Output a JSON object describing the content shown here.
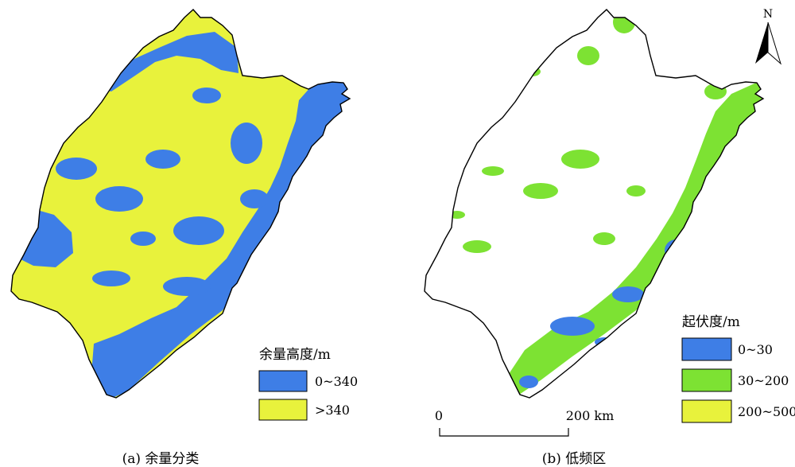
{
  "panels": [
    {
      "caption": "(a) 余量分类",
      "legend": {
        "title": "余量高度/m",
        "items": [
          {
            "label": "0~340",
            "color": "#3e7ee6"
          },
          {
            "label": ">340",
            "color": "#e8f23c"
          }
        ]
      }
    },
    {
      "caption": "(b) 低频区",
      "legend": {
        "title": "起伏度/m",
        "items": [
          {
            "label": "0~30",
            "color": "#3e7ee6"
          },
          {
            "label": "30~200",
            "color": "#7de233"
          },
          {
            "label": "200~500",
            "color": "#e8f23c"
          }
        ]
      }
    }
  ],
  "scalebar": {
    "start_label": "0",
    "end_label": "200 km"
  },
  "north_arrow": {
    "label": "N",
    "icon": "north-arrow-icon"
  }
}
